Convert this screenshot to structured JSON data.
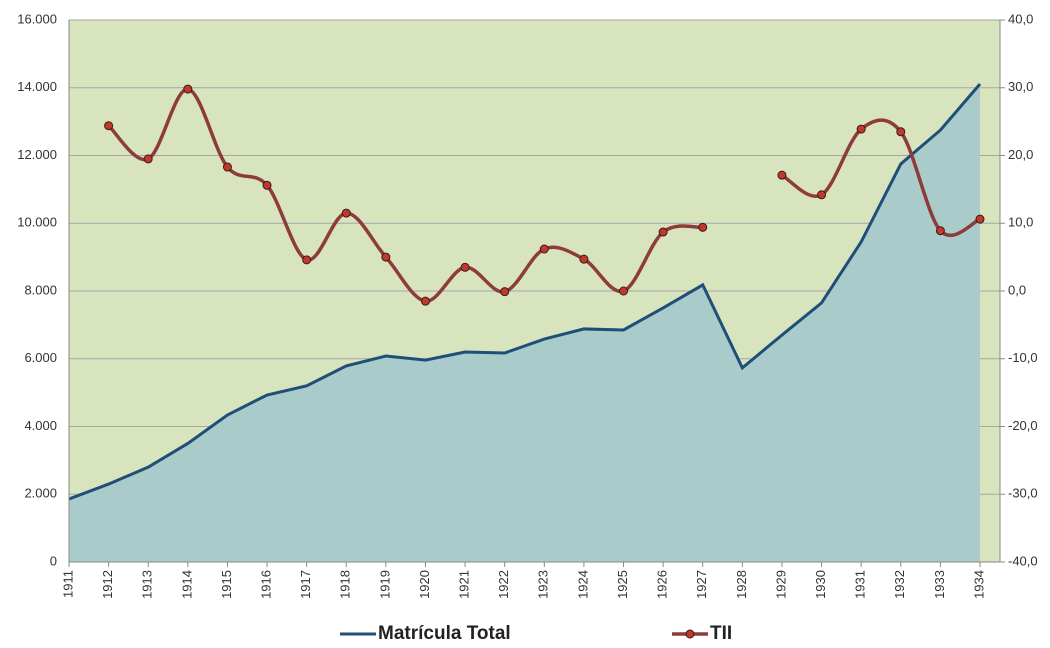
{
  "chart_data": {
    "type": "line",
    "categories": [
      "1911",
      "1912",
      "1913",
      "1914",
      "1915",
      "1916",
      "1917",
      "1918",
      "1919",
      "1920",
      "1921",
      "1922",
      "1923",
      "1924",
      "1925",
      "1926",
      "1927",
      "1928",
      "1929",
      "1930",
      "1931",
      "1932",
      "1933",
      "1934"
    ],
    "series": [
      {
        "name": "Matrícula Total",
        "color": "#1f4e79",
        "fill": "#a9cccb",
        "values": [
          1860,
          2300,
          2800,
          3500,
          4340,
          4930,
          5200,
          5790,
          6080,
          5960,
          6200,
          6170,
          6580,
          6880,
          6850,
          7500,
          8180,
          5730,
          6700,
          7650,
          9450,
          11750,
          12750,
          14110
        ]
      },
      {
        "name": "TII",
        "color": "#8e3b3b",
        "marker_color": "#c0392b",
        "axis": "y2",
        "values": [
          null,
          24.4,
          19.5,
          29.8,
          18.3,
          15.6,
          4.6,
          11.5,
          5.0,
          -1.5,
          3.5,
          -0.1,
          6.2,
          4.7,
          0.0,
          8.7,
          9.4,
          null,
          17.1,
          14.2,
          23.9,
          23.5,
          8.9,
          10.6
        ]
      }
    ],
    "ylim": [
      0,
      16000
    ],
    "yticks": [
      {
        "value": 0,
        "label": "0"
      },
      {
        "value": 2000,
        "label": "2.000"
      },
      {
        "value": 4000,
        "label": "4.000"
      },
      {
        "value": 6000,
        "label": "6.000"
      },
      {
        "value": 8000,
        "label": "8.000"
      },
      {
        "value": 10000,
        "label": "10.000"
      },
      {
        "value": 12000,
        "label": "12.000"
      },
      {
        "value": 14000,
        "label": "14.000"
      },
      {
        "value": 16000,
        "label": "16.000"
      }
    ],
    "y2lim": [
      -40,
      40
    ],
    "y2ticks": [
      {
        "value": -40,
        "label": "-40,0"
      },
      {
        "value": -30,
        "label": "-30,0"
      },
      {
        "value": -20,
        "label": "-20,0"
      },
      {
        "value": -10,
        "label": "-10,0"
      },
      {
        "value": 0,
        "label": "0,0"
      },
      {
        "value": 10,
        "label": "10,0"
      },
      {
        "value": 20,
        "label": "20,0"
      },
      {
        "value": 30,
        "label": "30,0"
      },
      {
        "value": 40,
        "label": "40,0"
      }
    ],
    "grid": true,
    "plot_background": "#d7e4bd",
    "legend": "bottom"
  }
}
